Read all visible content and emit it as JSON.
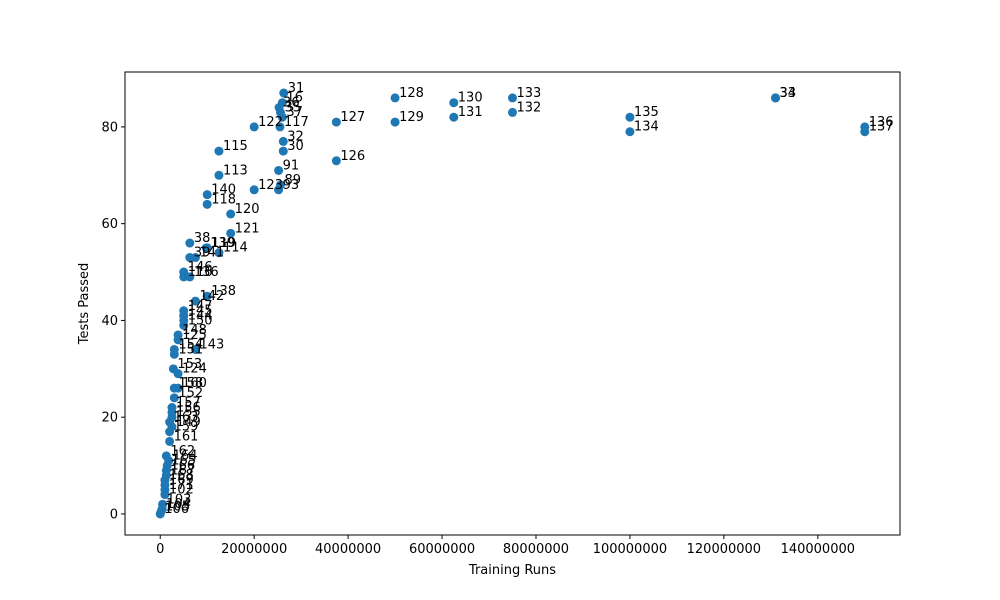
{
  "chart_data": {
    "type": "scatter",
    "title": "",
    "xlabel": "Training Runs",
    "ylabel": "Tests Passed",
    "xlim": [
      -7500000,
      157500000
    ],
    "ylim": [
      -4.35,
      91.35
    ],
    "x_ticks": [
      0,
      20000000,
      40000000,
      60000000,
      80000000,
      100000000,
      120000000,
      140000000
    ],
    "x_tick_labels": [
      "0",
      "20000000",
      "40000000",
      "60000000",
      "80000000",
      "100000000",
      "120000000",
      "140000000"
    ],
    "y_ticks": [
      0,
      20,
      40,
      60,
      80
    ],
    "y_tick_labels": [
      "0",
      "20",
      "40",
      "60",
      "80"
    ],
    "grid": false,
    "legend": "none",
    "marker_color": "#1f77b4",
    "points": [
      {
        "label": "31",
        "x": 26300000,
        "y": 87
      },
      {
        "label": "16",
        "x": 26000000,
        "y": 85
      },
      {
        "label": "36",
        "x": 25300000,
        "y": 84
      },
      {
        "label": "35",
        "x": 25600000,
        "y": 83
      },
      {
        "label": "37",
        "x": 26000000,
        "y": 82
      },
      {
        "label": "117",
        "x": 25500000,
        "y": 80
      },
      {
        "label": "122",
        "x": 20000000,
        "y": 80
      },
      {
        "label": "32",
        "x": 26200000,
        "y": 77
      },
      {
        "label": "30",
        "x": 26200000,
        "y": 75
      },
      {
        "label": "91",
        "x": 25200000,
        "y": 71
      },
      {
        "label": "89",
        "x": 25600000,
        "y": 68
      },
      {
        "label": "93",
        "x": 25200000,
        "y": 67
      },
      {
        "label": "123",
        "x": 20000000,
        "y": 67
      },
      {
        "label": "127",
        "x": 37500000,
        "y": 81
      },
      {
        "label": "126",
        "x": 37500000,
        "y": 73
      },
      {
        "label": "128",
        "x": 50000000,
        "y": 86
      },
      {
        "label": "129",
        "x": 50000000,
        "y": 81
      },
      {
        "label": "130",
        "x": 62500000,
        "y": 85
      },
      {
        "label": "131",
        "x": 62500000,
        "y": 82
      },
      {
        "label": "133",
        "x": 75000000,
        "y": 86
      },
      {
        "label": "132",
        "x": 75000000,
        "y": 83
      },
      {
        "label": "135",
        "x": 100000000,
        "y": 82
      },
      {
        "label": "134",
        "x": 100000000,
        "y": 79
      },
      {
        "label": "33",
        "x": 131000000,
        "y": 86
      },
      {
        "label": "34",
        "x": 131000000,
        "y": 86
      },
      {
        "label": "136",
        "x": 150000000,
        "y": 80
      },
      {
        "label": "137",
        "x": 150000000,
        "y": 79
      },
      {
        "label": "115",
        "x": 12500000,
        "y": 75
      },
      {
        "label": "113",
        "x": 12500000,
        "y": 70
      },
      {
        "label": "140",
        "x": 10000000,
        "y": 66
      },
      {
        "label": "118",
        "x": 10000000,
        "y": 64
      },
      {
        "label": "120",
        "x": 15000000,
        "y": 62
      },
      {
        "label": "121",
        "x": 15000000,
        "y": 58
      },
      {
        "label": "38",
        "x": 6300000,
        "y": 56
      },
      {
        "label": "119",
        "x": 10000000,
        "y": 55
      },
      {
        "label": "139",
        "x": 9800000,
        "y": 55
      },
      {
        "label": "114",
        "x": 12500000,
        "y": 54
      },
      {
        "label": "39",
        "x": 6300000,
        "y": 53
      },
      {
        "label": "141",
        "x": 7500000,
        "y": 53
      },
      {
        "label": "146",
        "x": 5000000,
        "y": 50
      },
      {
        "label": "116",
        "x": 5000000,
        "y": 49
      },
      {
        "label": "136",
        "x": 6300000,
        "y": 49
      },
      {
        "label": "138",
        "x": 10000000,
        "y": 45
      },
      {
        "label": "142",
        "x": 7500000,
        "y": 44
      },
      {
        "label": "147",
        "x": 5000000,
        "y": 42
      },
      {
        "label": "145",
        "x": 5000000,
        "y": 41
      },
      {
        "label": "144",
        "x": 5000000,
        "y": 40
      },
      {
        "label": "150",
        "x": 5000000,
        "y": 39
      },
      {
        "label": "148",
        "x": 3800000,
        "y": 37
      },
      {
        "label": "125",
        "x": 3800000,
        "y": 36
      },
      {
        "label": "143",
        "x": 7500000,
        "y": 34
      },
      {
        "label": "154",
        "x": 3000000,
        "y": 34
      },
      {
        "label": "151",
        "x": 3000000,
        "y": 33
      },
      {
        "label": "153",
        "x": 2800000,
        "y": 30
      },
      {
        "label": "124",
        "x": 3800000,
        "y": 29
      },
      {
        "label": "158",
        "x": 3000000,
        "y": 26
      },
      {
        "label": "160",
        "x": 3800000,
        "y": 26
      },
      {
        "label": "152",
        "x": 3000000,
        "y": 24
      },
      {
        "label": "157",
        "x": 2500000,
        "y": 22
      },
      {
        "label": "156",
        "x": 2500000,
        "y": 21
      },
      {
        "label": "155",
        "x": 2500000,
        "y": 20
      },
      {
        "label": "163",
        "x": 2000000,
        "y": 19
      },
      {
        "label": "149",
        "x": 2500000,
        "y": 18
      },
      {
        "label": "159",
        "x": 2000000,
        "y": 17
      },
      {
        "label": "161",
        "x": 2000000,
        "y": 15
      },
      {
        "label": "162",
        "x": 1300000,
        "y": 12
      },
      {
        "label": "164",
        "x": 1800000,
        "y": 11
      },
      {
        "label": "165",
        "x": 1500000,
        "y": 10
      },
      {
        "label": "166",
        "x": 1300000,
        "y": 9
      },
      {
        "label": "167",
        "x": 1300000,
        "y": 8
      },
      {
        "label": "168",
        "x": 1000000,
        "y": 7
      },
      {
        "label": "169",
        "x": 1000000,
        "y": 6
      },
      {
        "label": "171",
        "x": 1000000,
        "y": 5
      },
      {
        "label": "102",
        "x": 1000000,
        "y": 4
      },
      {
        "label": "103",
        "x": 500000,
        "y": 2
      },
      {
        "label": "104",
        "x": 400000,
        "y": 1
      },
      {
        "label": "105",
        "x": 200000,
        "y": 0.5
      },
      {
        "label": "106",
        "x": 0,
        "y": 0
      }
    ]
  }
}
